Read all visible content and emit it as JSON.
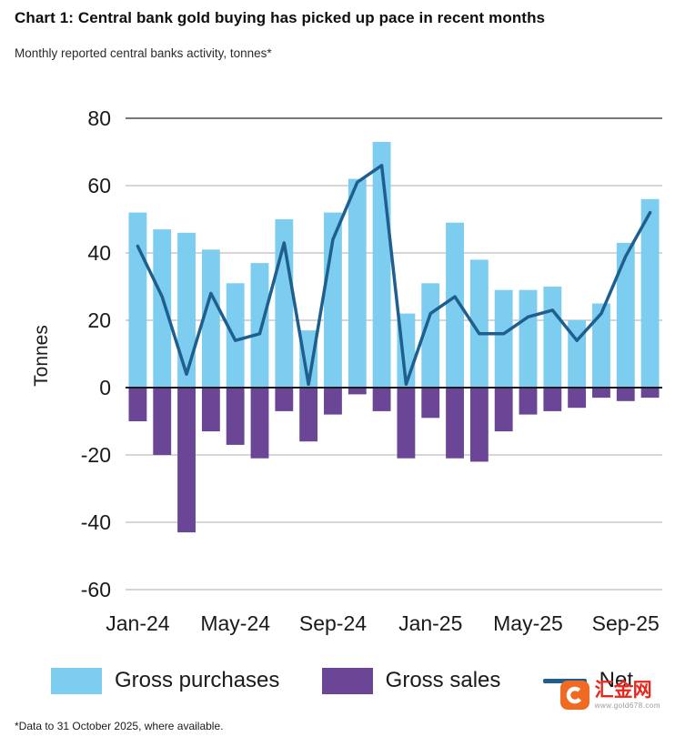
{
  "header": {
    "title": "Chart 1: Central bank gold buying has picked up pace in recent months",
    "subtitle": "Monthly reported central banks activity, tonnes*"
  },
  "footnote": "*Data to 31 October 2025, where available.",
  "watermark": {
    "brand": "汇金网",
    "url": "www.gold678.com"
  },
  "chart_data": {
    "type": "bar",
    "subtype": "bar+line combo, monthly",
    "title": "Chart 1: Central bank gold buying has picked up pace in recent months",
    "subtitle": "Monthly reported central banks activity, tonnes*",
    "ylabel": "Tonnes",
    "xlabel": "",
    "ylim": [
      -60,
      80
    ],
    "ytick_step": 20,
    "grid": true,
    "legend_position": "bottom",
    "categories": [
      "Jan-24",
      "Feb-24",
      "Mar-24",
      "Apr-24",
      "May-24",
      "Jun-24",
      "Jul-24",
      "Aug-24",
      "Sep-24",
      "Oct-24",
      "Nov-24",
      "Dec-24",
      "Jan-25",
      "Feb-25",
      "Mar-25",
      "Apr-25",
      "May-25",
      "Jun-25",
      "Jul-25",
      "Aug-25",
      "Sep-25",
      "Oct-25"
    ],
    "xticks": [
      "Jan-24",
      "May-24",
      "Sep-24",
      "Jan-25",
      "May-25",
      "Sep-25"
    ],
    "series": [
      {
        "name": "Gross purchases",
        "type": "bar",
        "color": "#7DCDF0",
        "values": [
          52,
          47,
          46,
          41,
          31,
          37,
          50,
          17,
          52,
          62,
          73,
          22,
          31,
          49,
          38,
          29,
          29,
          30,
          20,
          25,
          43,
          56
        ]
      },
      {
        "name": "Gross sales",
        "type": "bar",
        "color": "#6B4596",
        "values": [
          -10,
          -20,
          -43,
          -13,
          -17,
          -21,
          -7,
          -16,
          -8,
          -2,
          -7,
          -21,
          -9,
          -21,
          -22,
          -13,
          -8,
          -7,
          -6,
          -3,
          -4,
          -3
        ]
      },
      {
        "name": "Net",
        "type": "line",
        "color": "#1F5F8F",
        "values": [
          42,
          27,
          4,
          28,
          14,
          16,
          43,
          1,
          44,
          61,
          66,
          1,
          22,
          27,
          16,
          16,
          21,
          23,
          14,
          22,
          39,
          52
        ]
      }
    ]
  }
}
